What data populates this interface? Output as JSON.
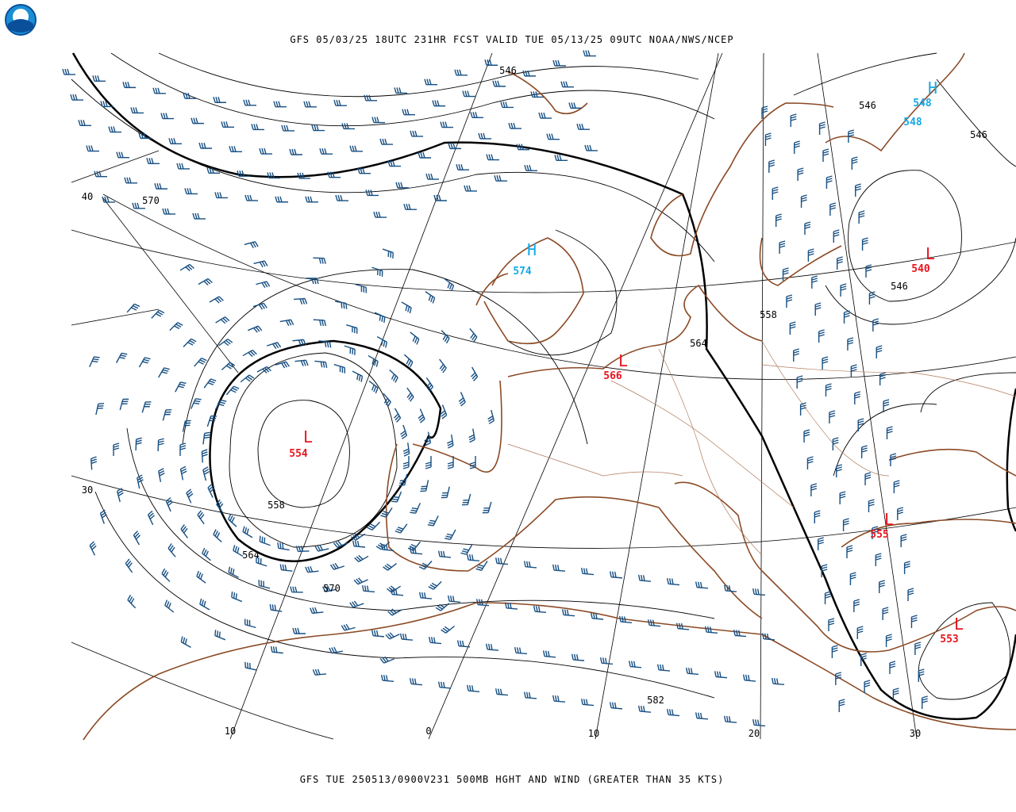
{
  "header": {
    "title": "GFS 05/03/25 18UTC 231HR FCST VALID TUE 05/13/25 09UTC NOAA/NWS/NCEP"
  },
  "footer": {
    "caption": "GFS TUE 250513/0900V231 500MB HGHT AND WIND (GREATER THAN 35 KTS)"
  },
  "contour_labels": [
    546,
    546,
    546,
    570,
    546,
    558,
    564,
    558,
    564,
    570,
    582
  ],
  "graticule_labels": [
    40,
    30,
    10,
    0,
    10,
    20,
    30
  ],
  "centers": [
    {
      "symbol": "H",
      "value": 574
    },
    {
      "symbol": "L",
      "value": 566
    },
    {
      "symbol": "L",
      "value": 554
    },
    {
      "symbol": "L",
      "value": 540
    },
    {
      "symbol": "L",
      "value": 555
    },
    {
      "symbol": "L",
      "value": 553
    },
    {
      "symbol": "H",
      "value": 548
    }
  ],
  "extra_center_labels": [
    548
  ]
}
